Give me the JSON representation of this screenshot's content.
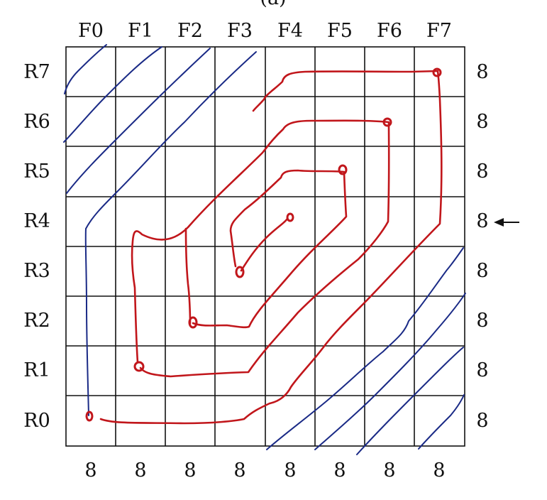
{
  "caption_fragment": "(a)",
  "grid": {
    "columns": [
      "F0",
      "F1",
      "F2",
      "F3",
      "F4",
      "F5",
      "F6",
      "F7"
    ],
    "rows": [
      "R7",
      "R6",
      "R5",
      "R4",
      "R3",
      "R2",
      "R1",
      "R0"
    ],
    "row_counts": [
      "8",
      "8",
      "8",
      "8",
      "8",
      "8",
      "8",
      "8"
    ],
    "column_counts": [
      "8",
      "8",
      "8",
      "8",
      "8",
      "8",
      "8",
      "8"
    ],
    "highlighted_row": "R4"
  },
  "colors": {
    "grid": "#111111",
    "blue_diagonals": "#1a2a86",
    "red_spiral_paths": "#c1161b",
    "background": "#ffffff"
  },
  "icons": {
    "row_pointer": "left-arrow-icon"
  }
}
